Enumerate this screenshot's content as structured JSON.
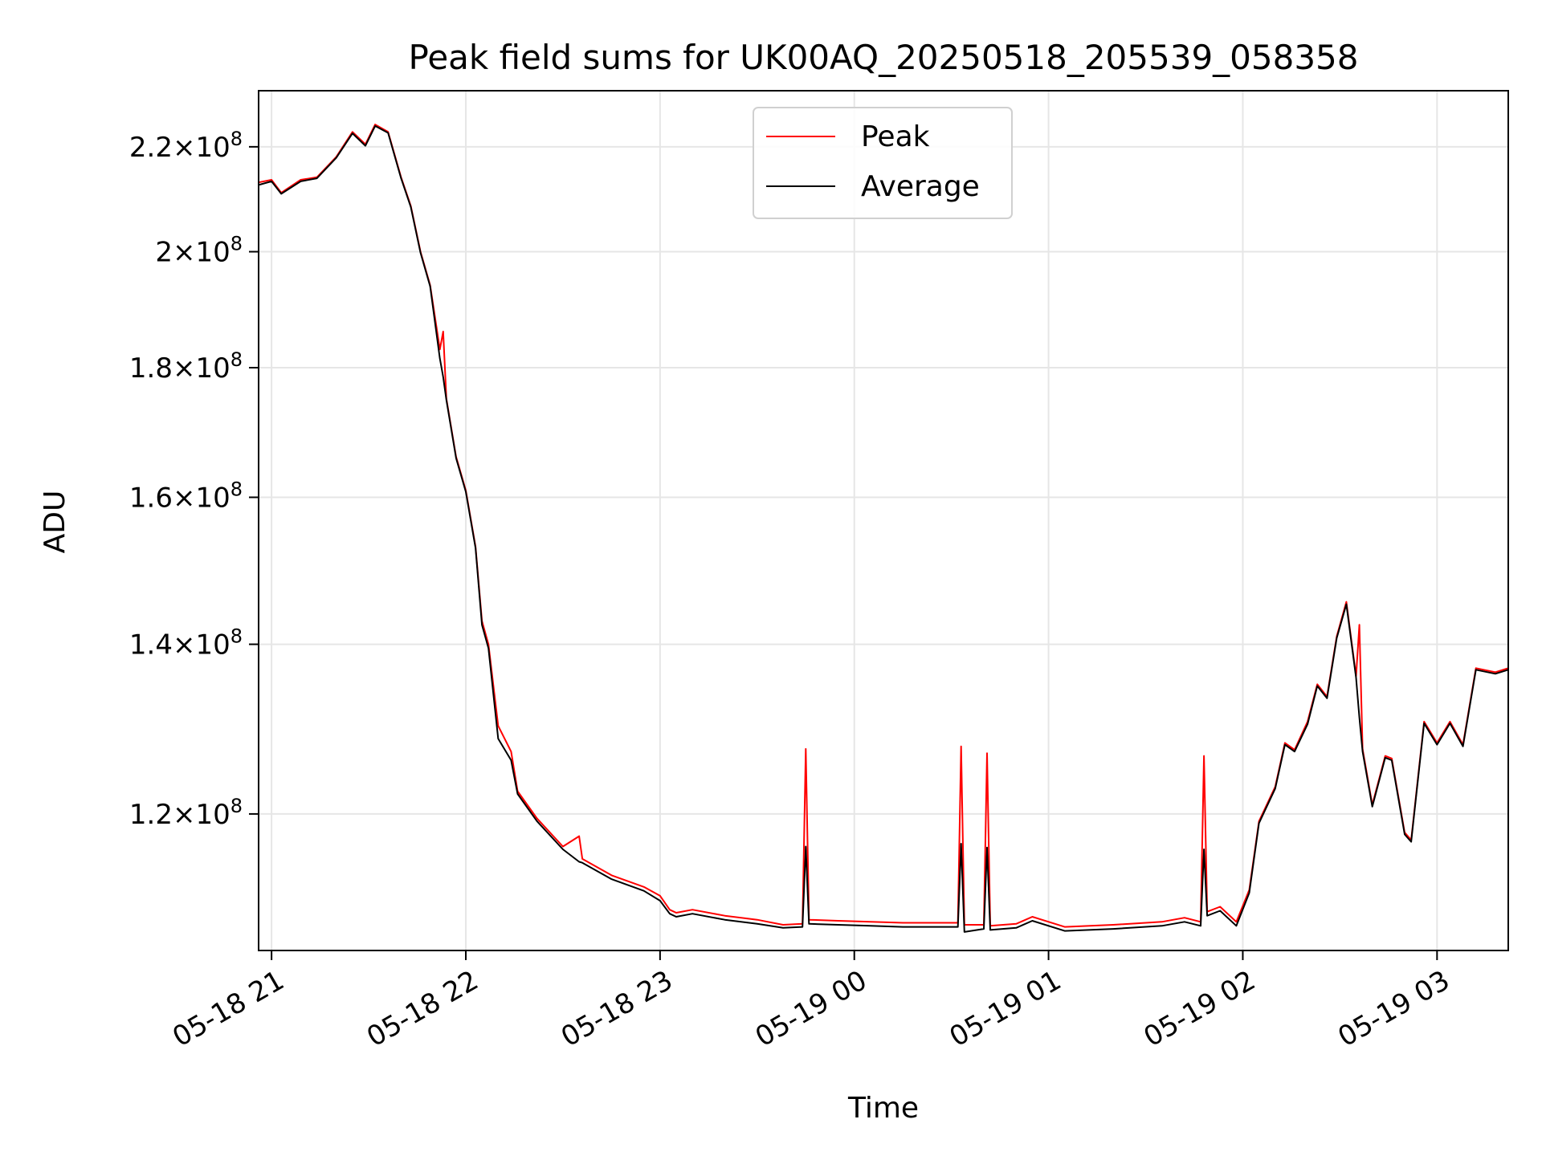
{
  "chart_data": {
    "type": "line",
    "title": "Peak field sums for UK00AQ_20250518_205539_058358",
    "xlabel": "Time",
    "ylabel": "ADU",
    "y_scale": "log",
    "grid": true,
    "legend_position": "top-center",
    "xlim": [
      "2025-05-18 20:56",
      "2025-05-19 03:22"
    ],
    "ylim": [
      106000000,
      231500000
    ],
    "x_ticks": [
      {
        "value": "2025-05-18 21:00",
        "label": "05-18 21"
      },
      {
        "value": "2025-05-18 22:00",
        "label": "05-18 22"
      },
      {
        "value": "2025-05-18 23:00",
        "label": "05-18 23"
      },
      {
        "value": "2025-05-19 00:00",
        "label": "05-19 00"
      },
      {
        "value": "2025-05-19 01:00",
        "label": "05-19 01"
      },
      {
        "value": "2025-05-19 02:00",
        "label": "05-19 02"
      },
      {
        "value": "2025-05-19 03:00",
        "label": "05-19 03"
      }
    ],
    "y_ticks": [
      {
        "value": 120000000,
        "mant": "1.2",
        "exp": "8"
      },
      {
        "value": 140000000,
        "mant": "1.4",
        "exp": "8"
      },
      {
        "value": 160000000,
        "mant": "1.6",
        "exp": "8"
      },
      {
        "value": 180000000,
        "mant": "1.8",
        "exp": "8"
      },
      {
        "value": 200000000,
        "mant": "2",
        "exp": "8"
      },
      {
        "value": 220000000,
        "mant": "2.2",
        "exp": "8"
      }
    ],
    "series": [
      {
        "name": "Peak",
        "color": "#ff0000",
        "points": [
          [
            "2025-05-18 20:56",
            213000000
          ],
          [
            "2025-05-18 21:00",
            213500000
          ],
          [
            "2025-05-18 21:03",
            211000000
          ],
          [
            "2025-05-18 21:09",
            213500000
          ],
          [
            "2025-05-18 21:14",
            214000000
          ],
          [
            "2025-05-18 21:20",
            218000000
          ],
          [
            "2025-05-18 21:25",
            223000000
          ],
          [
            "2025-05-18 21:29",
            220500000
          ],
          [
            "2025-05-18 21:32",
            224500000
          ],
          [
            "2025-05-18 21:36",
            223000000
          ],
          [
            "2025-05-18 21:40",
            214000000
          ],
          [
            "2025-05-18 21:43",
            208500000
          ],
          [
            "2025-05-18 21:46",
            200000000
          ],
          [
            "2025-05-18 21:49",
            194000000
          ],
          [
            "2025-05-18 21:52",
            183000000
          ],
          [
            "2025-05-18 21:53",
            186000000
          ],
          [
            "2025-05-18 21:54",
            175000000
          ],
          [
            "2025-05-18 21:57",
            166000000
          ],
          [
            "2025-05-18 22:00",
            161000000
          ],
          [
            "2025-05-18 22:03",
            153000000
          ],
          [
            "2025-05-18 22:05",
            143000000
          ],
          [
            "2025-05-18 22:07",
            140000000
          ],
          [
            "2025-05-18 22:10",
            130000000
          ],
          [
            "2025-05-18 22:14",
            127000000
          ],
          [
            "2025-05-18 22:16",
            122500000
          ],
          [
            "2025-05-18 22:22",
            119500000
          ],
          [
            "2025-05-18 22:30",
            116500000
          ],
          [
            "2025-05-18 22:35",
            117600000
          ],
          [
            "2025-05-18 22:36",
            115200000
          ],
          [
            "2025-05-18 22:45",
            113500000
          ],
          [
            "2025-05-18 22:55",
            112300000
          ],
          [
            "2025-05-18 23:00",
            111400000
          ],
          [
            "2025-05-18 23:03",
            110000000
          ],
          [
            "2025-05-18 23:05",
            109700000
          ],
          [
            "2025-05-18 23:10",
            110000000
          ],
          [
            "2025-05-18 23:20",
            109400000
          ],
          [
            "2025-05-18 23:30",
            109000000
          ],
          [
            "2025-05-18 23:38",
            108500000
          ],
          [
            "2025-05-18 23:44",
            108600000
          ],
          [
            "2025-05-18 23:45",
            127300000
          ],
          [
            "2025-05-18 23:46",
            109000000
          ],
          [
            "2025-05-18 23:55",
            108900000
          ],
          [
            "2025-05-19 00:05",
            108800000
          ],
          [
            "2025-05-19 00:15",
            108700000
          ],
          [
            "2025-05-19 00:25",
            108700000
          ],
          [
            "2025-05-19 00:32",
            108700000
          ],
          [
            "2025-05-19 00:33",
            127600000
          ],
          [
            "2025-05-19 00:34",
            108500000
          ],
          [
            "2025-05-19 00:40",
            108500000
          ],
          [
            "2025-05-19 00:41",
            126800000
          ],
          [
            "2025-05-19 00:42",
            108400000
          ],
          [
            "2025-05-19 00:50",
            108600000
          ],
          [
            "2025-05-19 00:55",
            109300000
          ],
          [
            "2025-05-19 01:05",
            108300000
          ],
          [
            "2025-05-19 01:20",
            108500000
          ],
          [
            "2025-05-19 01:35",
            108800000
          ],
          [
            "2025-05-19 01:42",
            109200000
          ],
          [
            "2025-05-19 01:47",
            108800000
          ],
          [
            "2025-05-19 01:48",
            126500000
          ],
          [
            "2025-05-19 01:49",
            109800000
          ],
          [
            "2025-05-19 01:53",
            110300000
          ],
          [
            "2025-05-19 01:58",
            108800000
          ],
          [
            "2025-05-19 02:02",
            112000000
          ],
          [
            "2025-05-19 02:05",
            119200000
          ],
          [
            "2025-05-19 02:10",
            123000000
          ],
          [
            "2025-05-19 02:13",
            128000000
          ],
          [
            "2025-05-19 02:16",
            127200000
          ],
          [
            "2025-05-19 02:20",
            130500000
          ],
          [
            "2025-05-19 02:23",
            135000000
          ],
          [
            "2025-05-19 02:26",
            133500000
          ],
          [
            "2025-05-19 02:29",
            141000000
          ],
          [
            "2025-05-19 02:32",
            145500000
          ],
          [
            "2025-05-19 02:35",
            136000000
          ],
          [
            "2025-05-19 02:36",
            142500000
          ],
          [
            "2025-05-19 02:37",
            127300000
          ],
          [
            "2025-05-19 02:40",
            121000000
          ],
          [
            "2025-05-19 02:44",
            126500000
          ],
          [
            "2025-05-19 02:46",
            126200000
          ],
          [
            "2025-05-19 02:50",
            118000000
          ],
          [
            "2025-05-19 02:52",
            117200000
          ],
          [
            "2025-05-19 02:56",
            130500000
          ],
          [
            "2025-05-19 03:00",
            128000000
          ],
          [
            "2025-05-19 03:04",
            130500000
          ],
          [
            "2025-05-19 03:08",
            127800000
          ],
          [
            "2025-05-19 03:12",
            137000000
          ],
          [
            "2025-05-19 03:18",
            136500000
          ],
          [
            "2025-05-19 03:22",
            137000000
          ]
        ]
      },
      {
        "name": "Average",
        "color": "#000000",
        "points": [
          [
            "2025-05-18 20:56",
            212500000
          ],
          [
            "2025-05-18 21:00",
            213200000
          ],
          [
            "2025-05-18 21:03",
            210800000
          ],
          [
            "2025-05-18 21:09",
            213200000
          ],
          [
            "2025-05-18 21:14",
            213800000
          ],
          [
            "2025-05-18 21:20",
            217800000
          ],
          [
            "2025-05-18 21:25",
            222700000
          ],
          [
            "2025-05-18 21:29",
            220200000
          ],
          [
            "2025-05-18 21:32",
            224200000
          ],
          [
            "2025-05-18 21:36",
            222800000
          ],
          [
            "2025-05-18 21:40",
            213800000
          ],
          [
            "2025-05-18 21:43",
            208300000
          ],
          [
            "2025-05-18 21:46",
            199800000
          ],
          [
            "2025-05-18 21:49",
            193800000
          ],
          [
            "2025-05-18 21:52",
            181500000
          ],
          [
            "2025-05-18 21:53",
            178500000
          ],
          [
            "2025-05-18 21:54",
            174800000
          ],
          [
            "2025-05-18 21:57",
            165800000
          ],
          [
            "2025-05-18 22:00",
            160800000
          ],
          [
            "2025-05-18 22:03",
            152800000
          ],
          [
            "2025-05-18 22:05",
            142500000
          ],
          [
            "2025-05-18 22:07",
            139500000
          ],
          [
            "2025-05-18 22:10",
            128500000
          ],
          [
            "2025-05-18 22:14",
            126000000
          ],
          [
            "2025-05-18 22:16",
            122200000
          ],
          [
            "2025-05-18 22:22",
            119200000
          ],
          [
            "2025-05-18 22:30",
            116200000
          ],
          [
            "2025-05-18 22:35",
            114900000
          ],
          [
            "2025-05-18 22:36",
            114800000
          ],
          [
            "2025-05-18 22:45",
            113100000
          ],
          [
            "2025-05-18 22:55",
            111900000
          ],
          [
            "2025-05-18 23:00",
            110900000
          ],
          [
            "2025-05-18 23:03",
            109600000
          ],
          [
            "2025-05-18 23:05",
            109300000
          ],
          [
            "2025-05-18 23:10",
            109600000
          ],
          [
            "2025-05-18 23:20",
            109000000
          ],
          [
            "2025-05-18 23:30",
            108600000
          ],
          [
            "2025-05-18 23:38",
            108200000
          ],
          [
            "2025-05-18 23:44",
            108300000
          ],
          [
            "2025-05-18 23:45",
            116500000
          ],
          [
            "2025-05-18 23:46",
            108600000
          ],
          [
            "2025-05-18 23:55",
            108500000
          ],
          [
            "2025-05-19 00:05",
            108400000
          ],
          [
            "2025-05-19 00:15",
            108300000
          ],
          [
            "2025-05-19 00:25",
            108300000
          ],
          [
            "2025-05-19 00:32",
            108300000
          ],
          [
            "2025-05-19 00:33",
            116800000
          ],
          [
            "2025-05-19 00:34",
            107800000
          ],
          [
            "2025-05-19 00:40",
            108100000
          ],
          [
            "2025-05-19 00:41",
            116400000
          ],
          [
            "2025-05-19 00:42",
            108000000
          ],
          [
            "2025-05-19 00:50",
            108200000
          ],
          [
            "2025-05-19 00:55",
            108900000
          ],
          [
            "2025-05-19 01:05",
            107900000
          ],
          [
            "2025-05-19 01:20",
            108100000
          ],
          [
            "2025-05-19 01:35",
            108400000
          ],
          [
            "2025-05-19 01:42",
            108800000
          ],
          [
            "2025-05-19 01:47",
            108400000
          ],
          [
            "2025-05-19 01:48",
            116200000
          ],
          [
            "2025-05-19 01:49",
            109400000
          ],
          [
            "2025-05-19 01:53",
            109900000
          ],
          [
            "2025-05-19 01:58",
            108400000
          ],
          [
            "2025-05-19 02:02",
            111700000
          ],
          [
            "2025-05-19 02:05",
            119000000
          ],
          [
            "2025-05-19 02:10",
            122800000
          ],
          [
            "2025-05-19 02:13",
            127800000
          ],
          [
            "2025-05-19 02:16",
            127000000
          ],
          [
            "2025-05-19 02:20",
            130200000
          ],
          [
            "2025-05-19 02:23",
            134800000
          ],
          [
            "2025-05-19 02:26",
            133300000
          ],
          [
            "2025-05-19 02:29",
            140800000
          ],
          [
            "2025-05-19 02:32",
            145200000
          ],
          [
            "2025-05-19 02:35",
            135800000
          ],
          [
            "2025-05-19 02:36",
            131000000
          ],
          [
            "2025-05-19 02:37",
            127000000
          ],
          [
            "2025-05-19 02:40",
            120800000
          ],
          [
            "2025-05-19 02:44",
            126300000
          ],
          [
            "2025-05-19 02:46",
            126000000
          ],
          [
            "2025-05-19 02:50",
            117800000
          ],
          [
            "2025-05-19 02:52",
            117000000
          ],
          [
            "2025-05-19 02:56",
            130300000
          ],
          [
            "2025-05-19 03:00",
            127800000
          ],
          [
            "2025-05-19 03:04",
            130300000
          ],
          [
            "2025-05-19 03:08",
            127600000
          ],
          [
            "2025-05-19 03:12",
            136800000
          ],
          [
            "2025-05-19 03:18",
            136300000
          ],
          [
            "2025-05-19 03:22",
            136800000
          ]
        ]
      }
    ]
  }
}
